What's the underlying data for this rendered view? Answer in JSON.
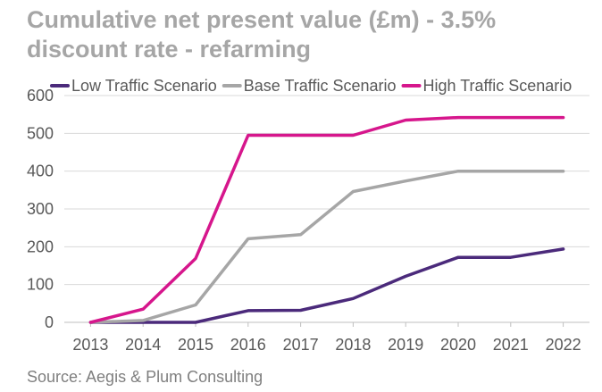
{
  "chart_data": {
    "type": "line",
    "title_lines": [
      "Cumulative net present value (£m) - 3.5%",
      "discount rate - refarming"
    ],
    "xlabel": "",
    "ylabel": "",
    "x": [
      "2013",
      "2014",
      "2015",
      "2016",
      "2017",
      "2018",
      "2019",
      "2020",
      "2021",
      "2022"
    ],
    "ylim": [
      0,
      600
    ],
    "yticks": [
      0,
      100,
      200,
      300,
      400,
      500,
      600
    ],
    "grid": true,
    "legend_position": "top",
    "series": [
      {
        "name": "Low Traffic Scenario",
        "color": "#4b2a7b",
        "values": [
          0,
          0,
          0,
          31,
          32,
          63,
          122,
          172,
          172,
          194
        ]
      },
      {
        "name": "Base Traffic Scenario",
        "color": "#a6a6a6",
        "values": [
          0,
          5,
          46,
          221,
          232,
          346,
          374,
          400,
          400,
          400
        ]
      },
      {
        "name": "High Traffic Scenario",
        "color": "#d6168c",
        "values": [
          0,
          35,
          169,
          495,
          495,
          495,
          535,
          542,
          542,
          542
        ]
      }
    ],
    "source": "Source: Aegis & Plum Consulting"
  }
}
